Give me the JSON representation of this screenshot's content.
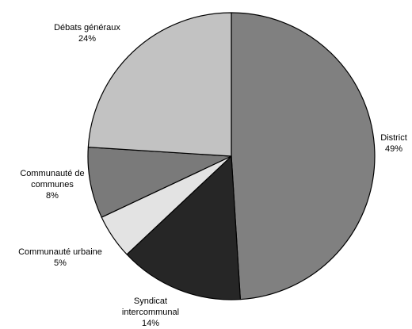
{
  "chart_data": {
    "type": "pie",
    "slices": [
      {
        "label_lines": [
          "District"
        ],
        "pct_label": "49%",
        "value": 49,
        "color": "#808080"
      },
      {
        "label_lines": [
          "Syndicat",
          "intercommunal"
        ],
        "pct_label": "14%",
        "value": 14,
        "color": "#262626"
      },
      {
        "label_lines": [
          "Communauté urbaine"
        ],
        "pct_label": "5%",
        "value": 5,
        "color": "#e3e3e3"
      },
      {
        "label_lines": [
          "Communauté de",
          "communes"
        ],
        "pct_label": "8%",
        "value": 8,
        "color": "#7a7a7a"
      },
      {
        "label_lines": [
          "Débats généraux"
        ],
        "pct_label": "24%",
        "value": 24,
        "color": "#c2c2c2"
      }
    ]
  }
}
